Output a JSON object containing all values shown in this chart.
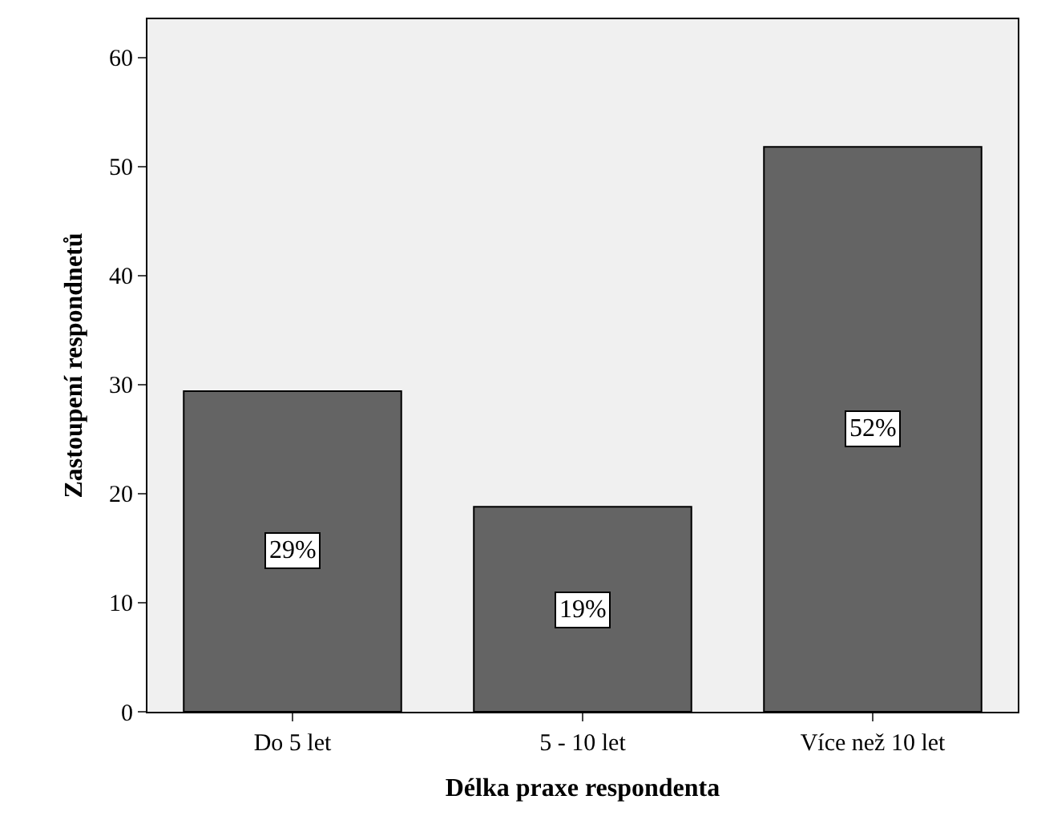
{
  "chart_data": {
    "type": "bar",
    "xlabel": "Délka praxe respondenta",
    "ylabel": "Zastoupení respondnetů",
    "categories": [
      "Do 5 let",
      "5 - 10 let",
      "Více než 10 let"
    ],
    "values": [
      29.4,
      18.8,
      51.8
    ],
    "value_labels": [
      "29%",
      "19%",
      "52%"
    ],
    "color": "#646464",
    "ylim": [
      0,
      63.5
    ],
    "yticks": [
      0,
      10,
      20,
      30,
      40,
      50,
      60
    ],
    "grid": false,
    "legend": false
  }
}
